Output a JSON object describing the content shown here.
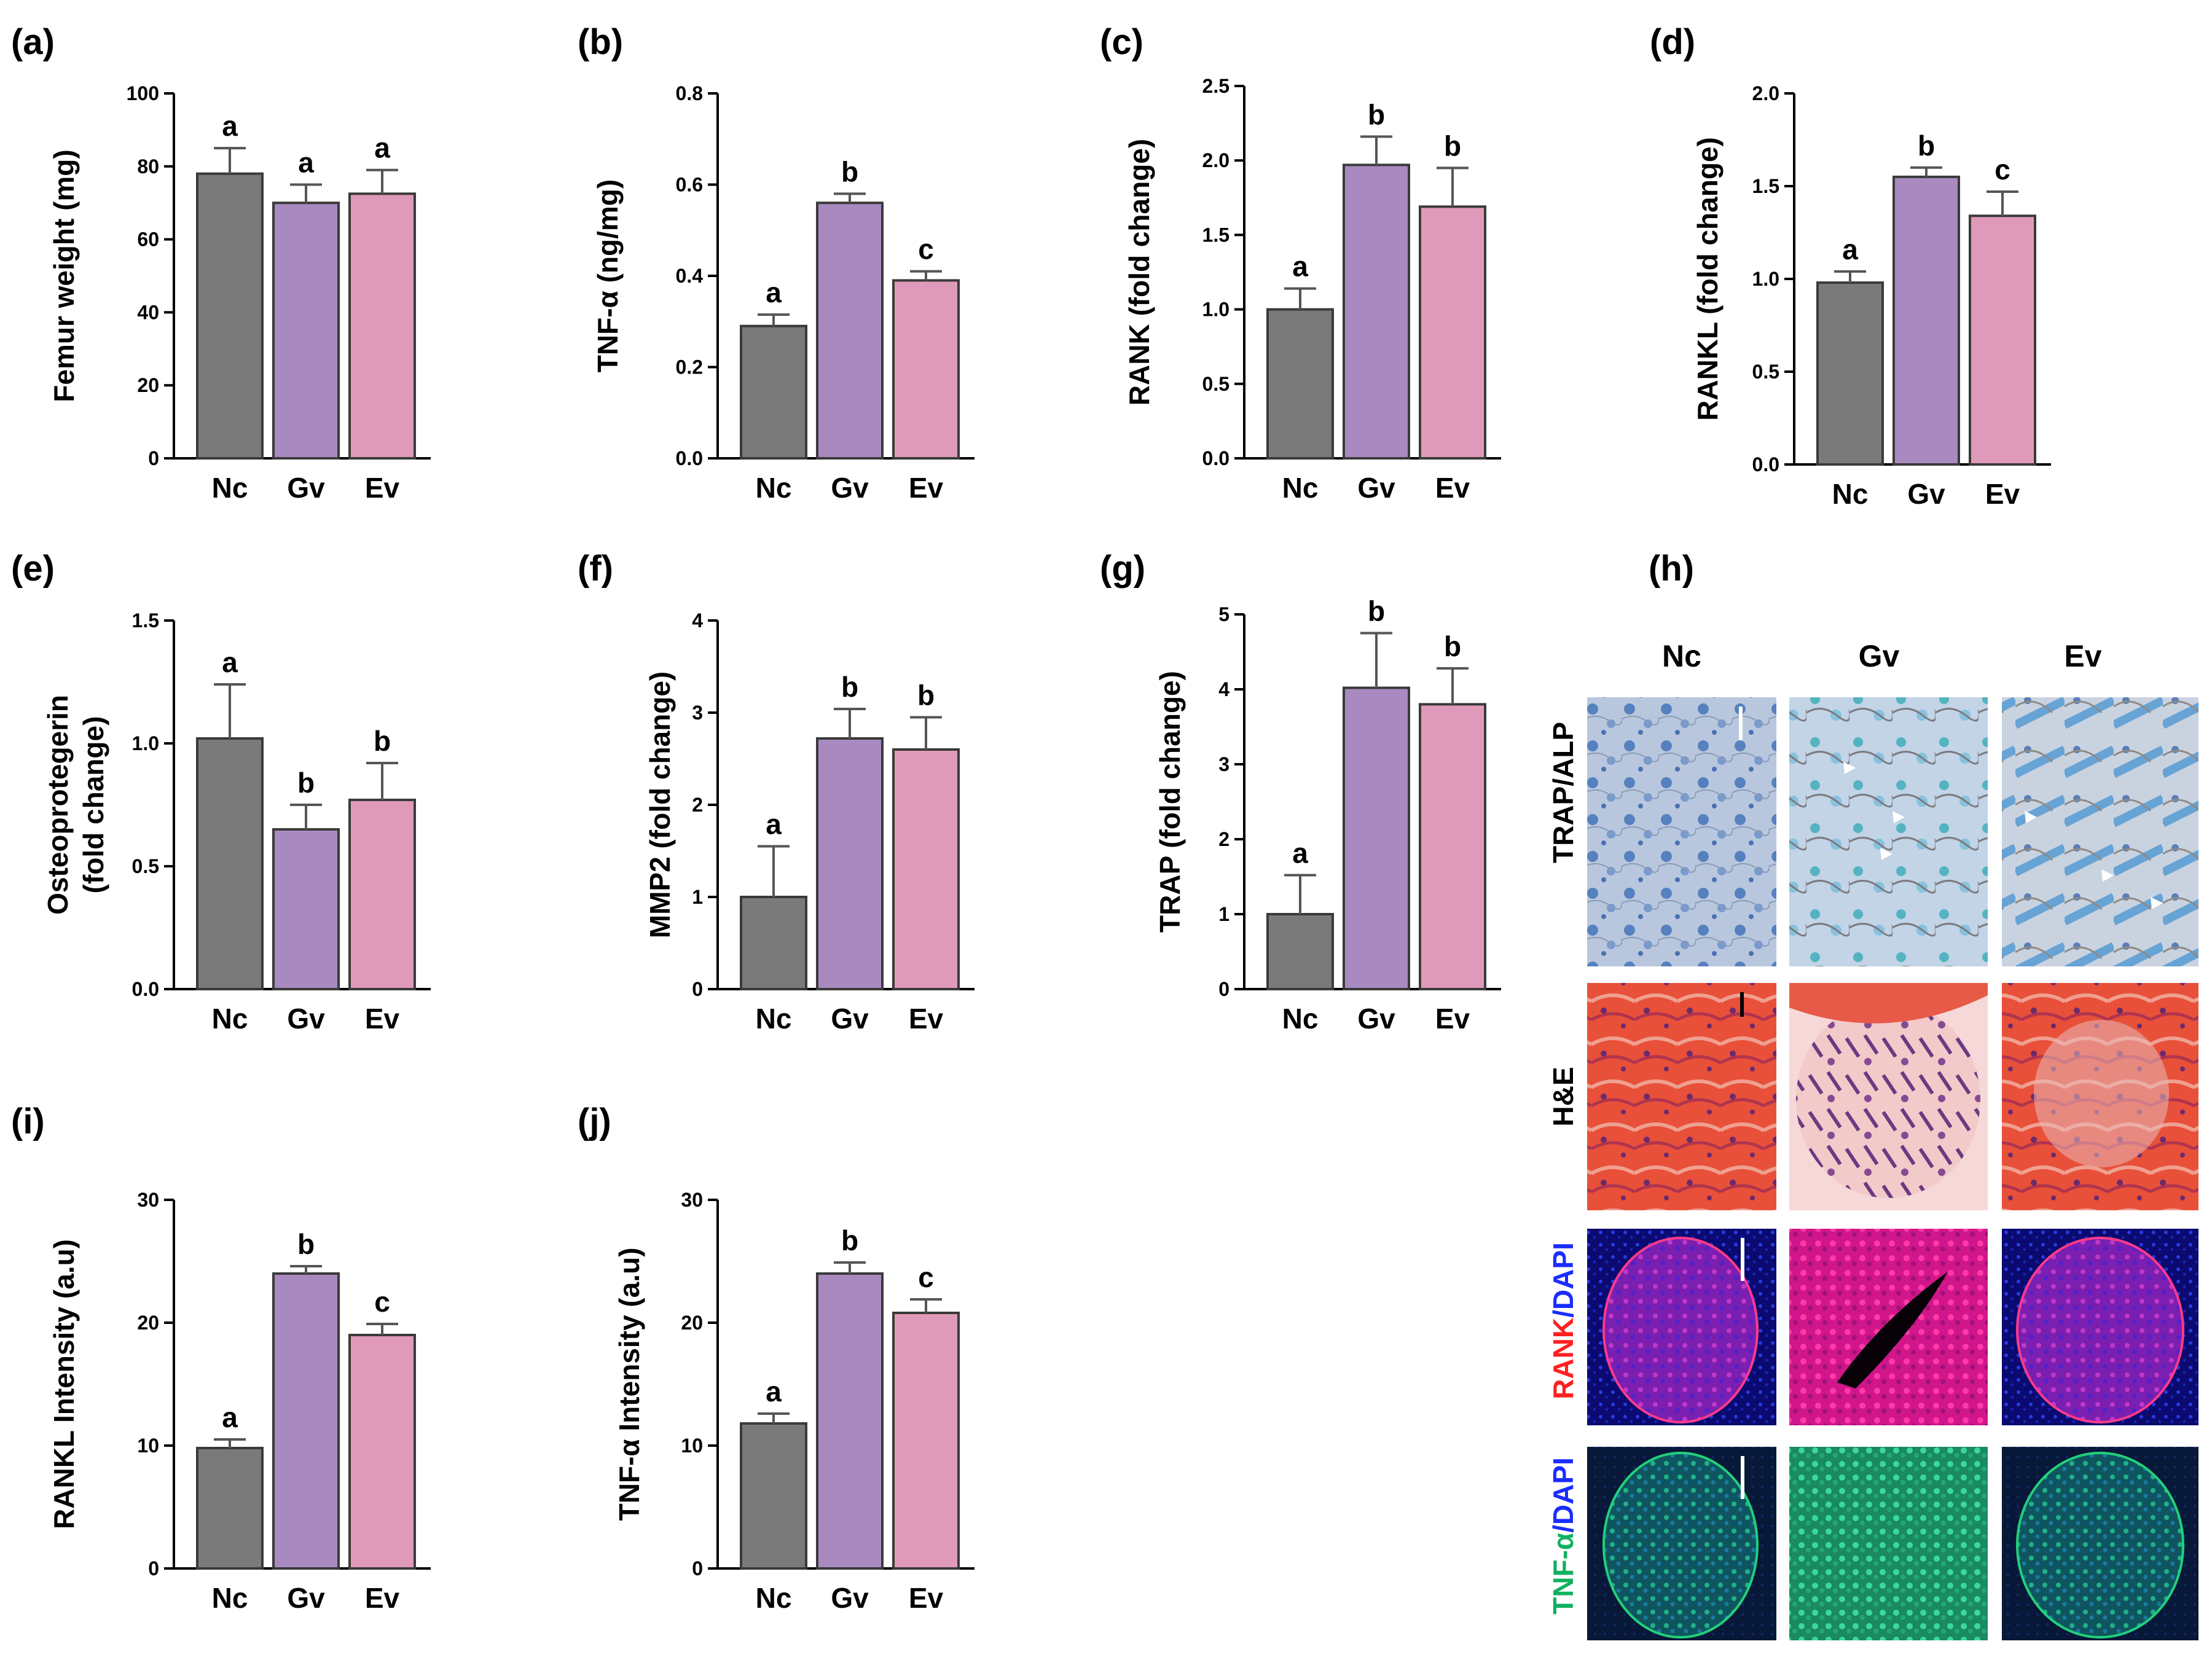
{
  "figure": {
    "colors": {
      "Nc": "#7a7a7a",
      "Gv": "#a98ac0",
      "Ev": "#e09ab9",
      "axis": "#000000",
      "red": "#ff2020",
      "blue": "#1a2cff",
      "green": "#10b060"
    }
  },
  "chart_data": [
    {
      "id": "a",
      "type": "bar",
      "panel_label": "(a)",
      "ylabel": "Femur weight (mg)",
      "categories": [
        "Nc",
        "Gv",
        "Ev"
      ],
      "values": [
        78,
        70,
        72.5
      ],
      "errors": [
        7,
        5,
        6.5
      ],
      "sig": [
        "a",
        "a",
        "a"
      ],
      "ylim": [
        0,
        100
      ],
      "ticks": [
        "0",
        "20",
        "40",
        "60",
        "80",
        "100"
      ]
    },
    {
      "id": "b",
      "type": "bar",
      "panel_label": "(b)",
      "ylabel": "TNF-α (ng/mg)",
      "categories": [
        "Nc",
        "Gv",
        "Ev"
      ],
      "values": [
        0.29,
        0.56,
        0.39
      ],
      "errors": [
        0.025,
        0.02,
        0.02
      ],
      "sig": [
        "a",
        "b",
        "c"
      ],
      "ylim": [
        0,
        0.8
      ],
      "ticks": [
        "0.0",
        "0.2",
        "0.4",
        "0.6",
        "0.8"
      ]
    },
    {
      "id": "c",
      "type": "bar",
      "panel_label": "(c)",
      "ylabel": "RANK (fold change)",
      "categories": [
        "Nc",
        "Gv",
        "Ev"
      ],
      "values": [
        1.0,
        1.97,
        1.69
      ],
      "errors": [
        0.14,
        0.19,
        0.26
      ],
      "sig": [
        "a",
        "b",
        "b"
      ],
      "ylim": [
        0,
        2.5
      ],
      "ticks": [
        "0.0",
        "0.5",
        "1.0",
        "1.5",
        "2.0",
        "2.5"
      ]
    },
    {
      "id": "d",
      "type": "bar",
      "panel_label": "(d)",
      "ylabel": "RANKL (fold change)",
      "categories": [
        "Nc",
        "Gv",
        "Ev"
      ],
      "values": [
        0.98,
        1.55,
        1.34
      ],
      "errors": [
        0.06,
        0.05,
        0.13
      ],
      "sig": [
        "a",
        "b",
        "c"
      ],
      "ylim": [
        0,
        2.0
      ],
      "ticks": [
        "0.0",
        "0.5",
        "1.0",
        "1.5",
        "2.0"
      ]
    },
    {
      "id": "e",
      "type": "bar",
      "panel_label": "(e)",
      "ylabel": "Osteoprotegerin",
      "ylabel2": "(fold change)",
      "categories": [
        "Nc",
        "Gv",
        "Ev"
      ],
      "values": [
        1.02,
        0.65,
        0.77
      ],
      "errors": [
        0.22,
        0.1,
        0.15
      ],
      "sig": [
        "a",
        "b",
        "b"
      ],
      "ylim": [
        0,
        1.5
      ],
      "ticks": [
        "0.0",
        "0.5",
        "1.0",
        "1.5"
      ]
    },
    {
      "id": "f",
      "type": "bar",
      "panel_label": "(f)",
      "ylabel": "MMP2 (fold change)",
      "categories": [
        "Nc",
        "Gv",
        "Ev"
      ],
      "values": [
        1.0,
        2.72,
        2.6
      ],
      "errors": [
        0.55,
        0.32,
        0.35
      ],
      "sig": [
        "a",
        "b",
        "b"
      ],
      "ylim": [
        0,
        4
      ],
      "ticks": [
        "0",
        "1",
        "2",
        "3",
        "4"
      ]
    },
    {
      "id": "g",
      "type": "bar",
      "panel_label": "(g)",
      "ylabel": "TRAP (fold change)",
      "categories": [
        "Nc",
        "Gv",
        "Ev"
      ],
      "values": [
        1.0,
        4.02,
        3.8
      ],
      "errors": [
        0.52,
        0.73,
        0.48
      ],
      "sig": [
        "a",
        "b",
        "b"
      ],
      "ylim": [
        0,
        5
      ],
      "ticks": [
        "0",
        "1",
        "2",
        "3",
        "4",
        "5"
      ]
    },
    {
      "id": "i",
      "type": "bar",
      "panel_label": "(i)",
      "ylabel": "RANKL Intensity (a.u)",
      "categories": [
        "Nc",
        "Gv",
        "Ev"
      ],
      "values": [
        9.8,
        24.0,
        19.0
      ],
      "errors": [
        0.7,
        0.6,
        0.9
      ],
      "sig": [
        "a",
        "b",
        "c"
      ],
      "ylim": [
        0,
        30
      ],
      "ticks": [
        "0",
        "10",
        "20",
        "30"
      ]
    },
    {
      "id": "j",
      "type": "bar",
      "panel_label": "(j)",
      "ylabel": "TNF-α Intensity (a.u)",
      "categories": [
        "Nc",
        "Gv",
        "Ev"
      ],
      "values": [
        11.8,
        24.0,
        20.8
      ],
      "errors": [
        0.8,
        0.9,
        1.1
      ],
      "sig": [
        "a",
        "b",
        "c"
      ],
      "ylim": [
        0,
        30
      ],
      "ticks": [
        "0",
        "10",
        "20",
        "30"
      ]
    }
  ],
  "micrographs": {
    "panel_label": "(h)",
    "columns": [
      "Nc",
      "Gv",
      "Ev"
    ],
    "rows": {
      "trap": "TRAP/ALP",
      "he": "H&E",
      "rank_a": "RANK",
      "rank_b": "/DAPI",
      "tnf_a": "TNF-α",
      "tnf_b": "/DAPI"
    }
  }
}
